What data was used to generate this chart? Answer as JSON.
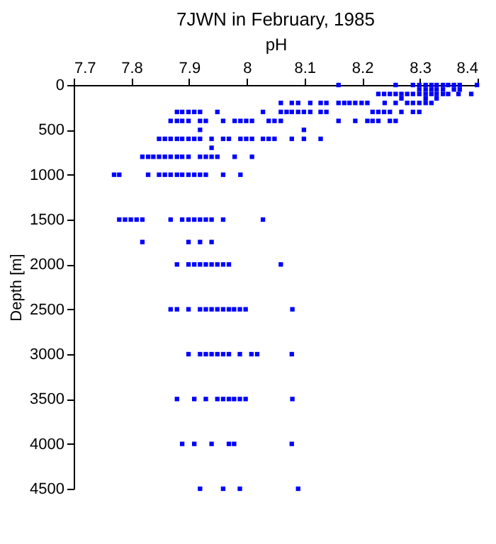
{
  "chart_data": {
    "type": "scatter",
    "title": "7JWN in February, 1985",
    "xlabel": "pH",
    "ylabel": "Depth [m]",
    "xlim": [
      7.7,
      8.4
    ],
    "xticks": [
      7.7,
      7.8,
      7.9,
      8,
      8.1,
      8.2,
      8.3,
      8.4
    ],
    "ylim": [
      4500,
      0
    ],
    "yticks": [
      0,
      500,
      1000,
      1500,
      2000,
      2500,
      3000,
      3500,
      4000,
      4500
    ],
    "grid": false,
    "legend": false,
    "marker": "square",
    "series": [
      {
        "color": "#0000ff",
        "x": [
          8.159,
          8.258,
          8.288,
          8.299,
          8.31,
          8.32,
          8.329,
          8.34,
          8.349,
          8.359,
          8.369,
          8.399
        ],
        "values": [
          0,
          0,
          0,
          0,
          0,
          0,
          0,
          0,
          0,
          0,
          0,
          0
        ]
      },
      {
        "color": "#0000ff",
        "x": [
          8.299,
          8.31,
          8.32,
          8.329,
          8.34,
          8.359,
          8.369
        ],
        "values": [
          50,
          50,
          50,
          50,
          50,
          50,
          50
        ]
      },
      {
        "color": "#0000ff",
        "x": [
          8.228,
          8.238,
          8.248,
          8.258,
          8.268,
          8.278,
          8.288,
          8.299,
          8.31,
          8.32,
          8.329,
          8.34,
          8.349,
          8.367,
          8.389
        ],
        "values": [
          100,
          100,
          100,
          100,
          100,
          100,
          100,
          100,
          100,
          100,
          100,
          100,
          100,
          100,
          100
        ]
      },
      {
        "color": "#0000ff",
        "x": [
          8.268,
          8.31,
          8.329
        ],
        "values": [
          150,
          150,
          150
        ]
      },
      {
        "color": "#0000ff",
        "x": [
          8.059,
          8.078,
          8.089,
          8.11,
          8.128,
          8.138,
          8.159,
          8.169,
          8.178,
          8.188,
          8.199,
          8.209,
          8.239,
          8.258,
          8.278,
          8.288,
          8.299,
          8.31,
          8.32
        ],
        "values": [
          200,
          200,
          200,
          200,
          200,
          200,
          200,
          200,
          200,
          200,
          200,
          200,
          200,
          200,
          200,
          200,
          200,
          200,
          200
        ]
      },
      {
        "color": "#0000ff",
        "x": [
          7.879,
          7.888,
          7.899,
          7.909,
          7.919,
          7.949,
          8.028,
          8.059,
          8.069,
          8.078,
          8.089,
          8.099,
          8.11,
          8.128,
          8.138,
          8.218,
          8.228,
          8.238,
          8.248,
          8.268,
          8.288,
          8.299
        ],
        "values": [
          300,
          300,
          300,
          300,
          300,
          300,
          300,
          300,
          300,
          300,
          300,
          300,
          300,
          300,
          300,
          300,
          300,
          300,
          300,
          300,
          300,
          300
        ]
      },
      {
        "color": "#0000ff",
        "x": [
          7.868,
          7.879,
          7.888,
          7.899,
          7.919,
          7.929,
          7.959,
          7.979,
          7.989,
          7.999,
          8.009,
          8.038,
          8.048,
          8.059,
          8.159,
          8.188,
          8.209,
          8.218,
          8.228,
          8.248,
          8.258
        ],
        "values": [
          400,
          400,
          400,
          400,
          400,
          400,
          400,
          400,
          400,
          400,
          400,
          400,
          400,
          400,
          400,
          400,
          400,
          400,
          400,
          400,
          400
        ]
      },
      {
        "color": "#0000ff",
        "x": [
          7.919,
          8.099
        ],
        "values": [
          500,
          500
        ]
      },
      {
        "color": "#0000ff",
        "x": [
          7.848,
          7.858,
          7.868,
          7.879,
          7.888,
          7.899,
          7.909,
          7.919,
          7.939,
          7.959,
          7.969,
          7.989,
          7.999,
          8.009,
          8.028,
          8.038,
          8.048,
          8.078,
          8.099,
          8.128
        ],
        "values": [
          600,
          600,
          600,
          600,
          600,
          600,
          600,
          600,
          600,
          600,
          600,
          600,
          600,
          600,
          600,
          600,
          600,
          600,
          600,
          600
        ]
      },
      {
        "color": "#0000ff",
        "x": [
          7.939
        ],
        "values": [
          700
        ]
      },
      {
        "color": "#0000ff",
        "x": [
          7.819,
          7.829,
          7.838,
          7.848,
          7.858,
          7.868,
          7.879,
          7.888,
          7.899,
          7.919,
          7.929,
          7.939,
          7.949,
          7.979,
          8.009
        ],
        "values": [
          800,
          800,
          800,
          800,
          800,
          800,
          800,
          800,
          800,
          800,
          800,
          800,
          800,
          800,
          800
        ]
      },
      {
        "color": "#0000ff",
        "x": [
          7.77,
          7.779,
          7.829,
          7.848,
          7.858,
          7.868,
          7.879,
          7.888,
          7.899,
          7.909,
          7.919,
          7.929,
          7.959,
          7.989
        ],
        "values": [
          1000,
          1000,
          1000,
          1000,
          1000,
          1000,
          1000,
          1000,
          1000,
          1000,
          1000,
          1000,
          1000,
          1000
        ]
      },
      {
        "color": "#0000ff",
        "x": [
          7.779,
          7.789,
          7.799,
          7.809,
          7.819,
          7.868,
          7.888,
          7.899,
          7.909,
          7.919,
          7.929,
          7.939,
          7.959,
          8.028
        ],
        "values": [
          1500,
          1500,
          1500,
          1500,
          1500,
          1500,
          1500,
          1500,
          1500,
          1500,
          1500,
          1500,
          1500,
          1500
        ]
      },
      {
        "color": "#0000ff",
        "x": [
          7.819,
          7.899,
          7.919,
          7.939
        ],
        "values": [
          1750,
          1750,
          1750,
          1750
        ]
      },
      {
        "color": "#0000ff",
        "x": [
          7.879,
          7.899,
          7.909,
          7.919,
          7.929,
          7.939,
          7.949,
          7.959,
          7.969,
          8.059
        ],
        "values": [
          2000,
          2000,
          2000,
          2000,
          2000,
          2000,
          2000,
          2000,
          2000,
          2000
        ]
      },
      {
        "color": "#0000ff",
        "x": [
          7.868,
          7.879,
          7.899,
          7.919,
          7.929,
          7.939,
          7.949,
          7.959,
          7.969,
          7.978,
          7.988,
          7.998,
          8.079
        ],
        "values": [
          2500,
          2500,
          2500,
          2500,
          2500,
          2500,
          2500,
          2500,
          2500,
          2500,
          2500,
          2500,
          2500
        ]
      },
      {
        "color": "#0000ff",
        "x": [
          7.899,
          7.919,
          7.929,
          7.939,
          7.949,
          7.959,
          7.969,
          7.988,
          8.008,
          8.018,
          8.078
        ],
        "values": [
          3000,
          3000,
          3000,
          3000,
          3000,
          3000,
          3000,
          3000,
          3000,
          3000,
          3000
        ]
      },
      {
        "color": "#0000ff",
        "x": [
          7.879,
          7.909,
          7.929,
          7.949,
          7.959,
          7.969,
          7.978,
          7.988,
          7.998,
          8.079
        ],
        "values": [
          3500,
          3500,
          3500,
          3500,
          3500,
          3500,
          3500,
          3500,
          3500,
          3500
        ]
      },
      {
        "color": "#0000ff",
        "x": [
          7.888,
          7.909,
          7.939,
          7.969,
          7.978,
          8.078
        ],
        "values": [
          4000,
          4000,
          4000,
          4000,
          4000,
          4000
        ]
      },
      {
        "color": "#0000ff",
        "x": [
          7.919,
          7.959,
          7.988,
          8.089
        ],
        "values": [
          4500,
          4500,
          4500,
          4500
        ]
      }
    ]
  }
}
